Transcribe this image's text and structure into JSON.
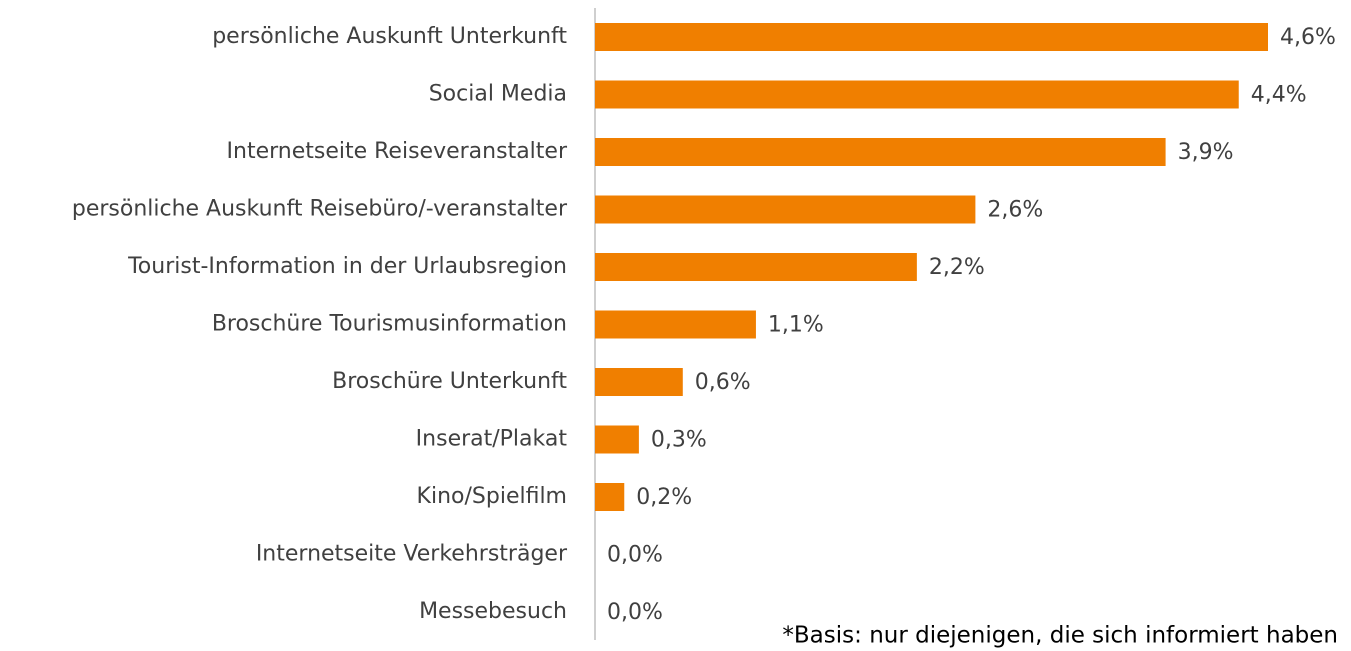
{
  "chart_data": {
    "type": "bar",
    "orientation": "horizontal",
    "categories": [
      "persönliche Auskunft Unterkunft",
      "Social Media",
      "Internetseite Reiseveranstalter",
      "persönliche Auskunft Reisebüro/-veranstalter",
      "Tourist-Information in der Urlaubsregion",
      "Broschüre Tourismusinformation",
      "Broschüre Unterkunft",
      "Inserat/Plakat",
      "Kino/Spielfilm",
      "Internetseite Verkehrsträger",
      "Messebesuch"
    ],
    "values": [
      4.6,
      4.4,
      3.9,
      2.6,
      2.2,
      1.1,
      0.6,
      0.3,
      0.2,
      0.0,
      0.0
    ],
    "value_labels": [
      "4,6%",
      "4,4%",
      "3,9%",
      "2,6%",
      "2,2%",
      "1,1%",
      "0,6%",
      "0,3%",
      "0,2%",
      "0,0%",
      "0,0%"
    ],
    "color": "#f07f00",
    "annotation": "*Basis: nur diejenigen, die sich informiert haben"
  }
}
